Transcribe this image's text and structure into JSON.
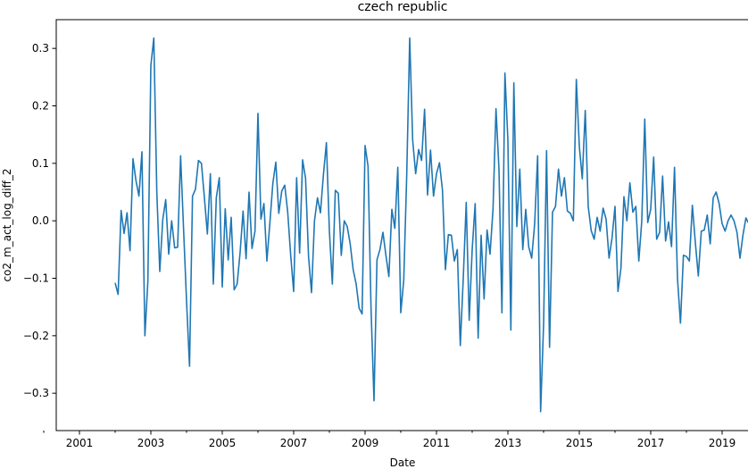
{
  "chart_data": {
    "type": "line",
    "title": "czech republic",
    "xlabel": "Date",
    "ylabel": "co2_m_act_log_diff_2",
    "xlim": [
      2000.35,
      2019.75
    ],
    "ylim": [
      -0.365,
      0.35
    ],
    "x_ticks": [
      {
        "value": 2001,
        "label": "2001"
      },
      {
        "value": 2003,
        "label": "2003"
      },
      {
        "value": 2005,
        "label": "2005"
      },
      {
        "value": 2007,
        "label": "2007"
      },
      {
        "value": 2009,
        "label": "2009"
      },
      {
        "value": 2011,
        "label": "2011"
      },
      {
        "value": 2013,
        "label": "2013"
      },
      {
        "value": 2015,
        "label": "2015"
      },
      {
        "value": 2017,
        "label": "2017"
      },
      {
        "value": 2019,
        "label": "2019"
      }
    ],
    "x_minor_ticks": [
      2000,
      2002,
      2004,
      2006,
      2008,
      2010,
      2012,
      2014,
      2016,
      2018
    ],
    "y_ticks": [
      {
        "value": 0.3,
        "label": "0.3"
      },
      {
        "value": 0.2,
        "label": "0.2"
      },
      {
        "value": 0.1,
        "label": "0.1"
      },
      {
        "value": 0.0,
        "label": "0.0"
      },
      {
        "value": -0.1,
        "label": "−0.1"
      },
      {
        "value": -0.2,
        "label": "−0.2"
      },
      {
        "value": -0.3,
        "label": "−0.3"
      }
    ],
    "grid": false,
    "color": "#1f77b4",
    "series": [
      {
        "start": 2002.0,
        "step": 0.08333333,
        "values": [
          -0.108,
          -0.128,
          0.018,
          -0.022,
          0.014,
          -0.052,
          0.108,
          0.07,
          0.043,
          0.12,
          -0.2,
          -0.105,
          0.27,
          0.318,
          0.05,
          -0.088,
          0.002,
          0.037,
          -0.058,
          0.0,
          -0.047,
          -0.046,
          0.113,
          -0.015,
          -0.14,
          -0.253,
          0.043,
          0.055,
          0.105,
          0.1,
          0.04,
          -0.023,
          0.082,
          -0.11,
          0.04,
          0.075,
          -0.115,
          0.021,
          -0.068,
          0.006,
          -0.12,
          -0.11,
          -0.055,
          0.017,
          -0.066,
          0.05,
          -0.048,
          -0.018,
          0.187,
          0.003,
          0.03,
          -0.07,
          -0.004,
          0.065,
          0.102,
          0.013,
          0.052,
          0.062,
          0.015,
          -0.06,
          -0.123,
          0.075,
          -0.056,
          0.106,
          0.074,
          -0.062,
          -0.125,
          0.0,
          0.04,
          0.014,
          0.08,
          0.136,
          -0.017,
          -0.11,
          0.053,
          0.048,
          -0.06,
          0.0,
          -0.01,
          -0.04,
          -0.085,
          -0.11,
          -0.152,
          -0.162,
          0.131,
          0.095,
          -0.152,
          -0.313,
          -0.068,
          -0.05,
          -0.02,
          -0.06,
          -0.097,
          0.02,
          -0.013,
          0.093,
          -0.16,
          -0.103,
          0.08,
          0.318,
          0.14,
          0.082,
          0.124,
          0.105,
          0.194,
          0.045,
          0.123,
          0.043,
          0.082,
          0.101,
          0.054,
          -0.085,
          -0.024,
          -0.025,
          -0.07,
          -0.05,
          -0.217,
          -0.1,
          0.032,
          -0.173,
          -0.05,
          0.03,
          -0.204,
          -0.025,
          -0.136,
          -0.016,
          -0.058,
          0.02,
          0.195,
          0.09,
          -0.16,
          0.257,
          0.14,
          -0.19,
          0.24,
          -0.01,
          0.09,
          -0.05,
          0.02,
          -0.045,
          -0.065,
          -0.005,
          0.113,
          -0.332,
          -0.18,
          0.122,
          -0.22,
          0.015,
          0.025,
          0.09,
          0.043,
          0.075,
          0.017,
          0.013,
          0.0,
          0.246,
          0.13,
          0.073,
          0.192,
          0.025,
          -0.017,
          -0.032,
          0.006,
          -0.018,
          0.022,
          0.003,
          -0.065,
          -0.03,
          0.025,
          -0.123,
          -0.082,
          0.042,
          0.0,
          0.066,
          0.015,
          0.025,
          -0.07,
          0.0,
          0.177,
          -0.003,
          0.02,
          0.111,
          -0.032,
          -0.02,
          0.078,
          -0.035,
          -0.002,
          -0.045,
          0.093,
          -0.1,
          -0.178,
          -0.06,
          -0.062,
          -0.07,
          0.027,
          -0.038,
          -0.096,
          -0.018,
          -0.016,
          0.01,
          -0.04,
          0.04,
          0.05,
          0.03,
          -0.005,
          -0.018,
          0.0,
          0.01,
          0.0,
          -0.02,
          -0.065,
          -0.025,
          0.005,
          -0.005
        ]
      }
    ]
  }
}
